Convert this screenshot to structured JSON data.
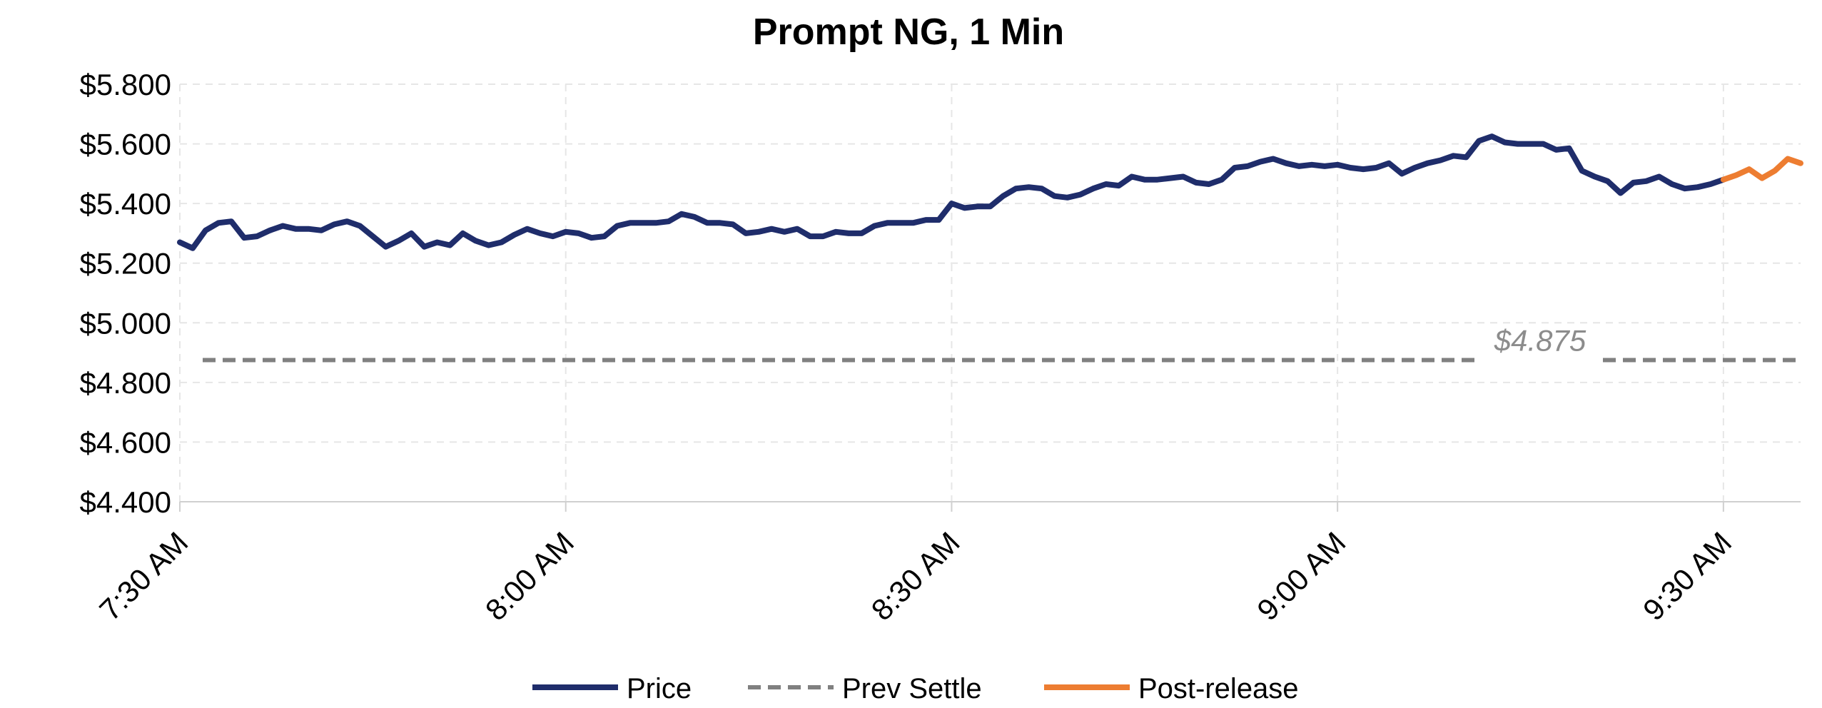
{
  "chart_data": {
    "type": "line",
    "title": "Prompt NG, 1 Min",
    "xlabel": "",
    "ylabel": "",
    "ylim": [
      4.4,
      5.8
    ],
    "y_ticks": [
      4.4,
      4.6,
      4.8,
      5.0,
      5.2,
      5.4,
      5.6,
      5.8
    ],
    "y_tick_labels": [
      "$4.400",
      "$4.600",
      "$4.800",
      "$5.000",
      "$5.200",
      "$5.400",
      "$5.600",
      "$5.800"
    ],
    "x_tick_labels": [
      "7:30 AM",
      "8:00 AM",
      "8:30 AM",
      "9:00 AM",
      "9:30 AM"
    ],
    "x_ticks_minutes": [
      0,
      30,
      60,
      90,
      120
    ],
    "x_range_minutes": [
      0,
      126
    ],
    "grid": true,
    "legend_position": "bottom",
    "series": [
      {
        "name": "Price",
        "color": "#1F2D6B",
        "x": [
          0,
          1,
          2,
          3,
          4,
          5,
          6,
          7,
          8,
          9,
          10,
          11,
          12,
          13,
          14,
          15,
          16,
          17,
          18,
          19,
          20,
          21,
          22,
          23,
          24,
          25,
          26,
          27,
          28,
          29,
          30,
          31,
          32,
          33,
          34,
          35,
          36,
          37,
          38,
          39,
          40,
          41,
          42,
          43,
          44,
          45,
          46,
          47,
          48,
          49,
          50,
          51,
          52,
          53,
          54,
          55,
          56,
          57,
          58,
          59,
          60,
          61,
          62,
          63,
          64,
          65,
          66,
          67,
          68,
          69,
          70,
          71,
          72,
          73,
          74,
          75,
          76,
          77,
          78,
          79,
          80,
          81,
          82,
          83,
          84,
          85,
          86,
          87,
          88,
          89,
          90,
          91,
          92,
          93,
          94,
          95,
          96,
          97,
          98,
          99,
          100,
          101,
          102,
          103,
          104,
          105,
          106,
          107,
          108,
          109,
          110,
          111,
          112,
          113,
          114,
          115,
          116,
          117,
          118,
          119,
          120
        ],
        "values": [
          5.27,
          5.25,
          5.31,
          5.335,
          5.34,
          5.285,
          5.29,
          5.31,
          5.325,
          5.315,
          5.315,
          5.31,
          5.33,
          5.34,
          5.325,
          5.29,
          5.255,
          5.275,
          5.3,
          5.255,
          5.27,
          5.26,
          5.3,
          5.275,
          5.26,
          5.27,
          5.295,
          5.315,
          5.3,
          5.29,
          5.305,
          5.3,
          5.285,
          5.29,
          5.325,
          5.335,
          5.335,
          5.335,
          5.34,
          5.365,
          5.355,
          5.335,
          5.335,
          5.33,
          5.3,
          5.305,
          5.315,
          5.305,
          5.315,
          5.29,
          5.29,
          5.305,
          5.3,
          5.3,
          5.325,
          5.335,
          5.335,
          5.335,
          5.345,
          5.345,
          5.4,
          5.385,
          5.39,
          5.39,
          5.425,
          5.45,
          5.455,
          5.45,
          5.425,
          5.42,
          5.43,
          5.45,
          5.465,
          5.46,
          5.49,
          5.48,
          5.48,
          5.485,
          5.49,
          5.47,
          5.465,
          5.48,
          5.52,
          5.525,
          5.54,
          5.55,
          5.535,
          5.525,
          5.53,
          5.525,
          5.53,
          5.52,
          5.515,
          5.52,
          5.535,
          5.5,
          5.52,
          5.535,
          5.545,
          5.56,
          5.555,
          5.61,
          5.625,
          5.605,
          5.6,
          5.6,
          5.6,
          5.58,
          5.585,
          5.51,
          5.49,
          5.475,
          5.435,
          5.47,
          5.475,
          5.49,
          5.465,
          5.45,
          5.455,
          5.465,
          5.48
        ]
      },
      {
        "name": "Post-release",
        "color": "#ED7D31",
        "x": [
          120,
          121,
          122,
          123,
          124,
          125,
          126
        ],
        "values": [
          5.48,
          5.495,
          5.515,
          5.485,
          5.51,
          5.55,
          5.535
        ]
      }
    ],
    "reference_line": {
      "name": "Prev Settle",
      "value": 4.875,
      "label": "$4.875",
      "color": "#808080"
    }
  },
  "legend": {
    "price": "Price",
    "prev_settle": "Prev Settle",
    "post_release": "Post-release"
  }
}
